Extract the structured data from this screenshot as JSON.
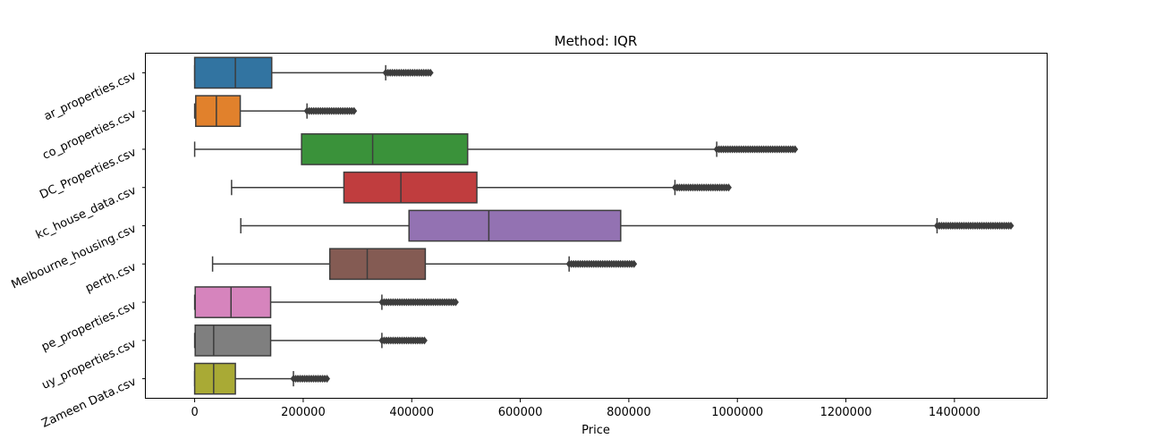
{
  "chart_data": {
    "type": "boxplot",
    "orientation": "horizontal",
    "title": "Method: IQR",
    "xlabel": "Price",
    "ylabel": "",
    "xlim": [
      -90000,
      1570000
    ],
    "xticks": [
      0,
      200000,
      400000,
      600000,
      800000,
      1000000,
      1200000,
      1400000
    ],
    "xtick_labels": [
      "0",
      "200000",
      "400000",
      "600000",
      "800000",
      "1000000",
      "1200000",
      "1400000"
    ],
    "grid": false,
    "legend": "none",
    "outlier_color": "#3d3d3d",
    "line_color": "#3d3d3d",
    "series": [
      {
        "name": "ar_properties.csv",
        "color": "#3274a1",
        "whisker_low": 0,
        "q1": 0,
        "median": 75000,
        "q3": 142000,
        "whisker_high": 352000,
        "outlier_min": 352000,
        "outlier_max": 435000
      },
      {
        "name": "co_properties.csv",
        "color": "#e1812c",
        "whisker_low": 0,
        "q1": 2000,
        "median": 40000,
        "q3": 84000,
        "whisker_high": 207000,
        "outlier_min": 207000,
        "outlier_max": 295000
      },
      {
        "name": "DC_Properties.csv",
        "color": "#3a923a",
        "whisker_low": 0,
        "q1": 197000,
        "median": 328000,
        "q3": 503000,
        "whisker_high": 962000,
        "outlier_min": 962000,
        "outlier_max": 1108000
      },
      {
        "name": "kc_house_data.csv",
        "color": "#c03d3e",
        "whisker_low": 68000,
        "q1": 275000,
        "median": 380000,
        "q3": 520000,
        "whisker_high": 885000,
        "outlier_min": 885000,
        "outlier_max": 988000
      },
      {
        "name": "Melbourne_housing.csv",
        "color": "#9372b2",
        "whisker_low": 85000,
        "q1": 395000,
        "median": 542000,
        "q3": 785000,
        "whisker_high": 1368000,
        "outlier_min": 1368000,
        "outlier_max": 1505000
      },
      {
        "name": "perth.csv",
        "color": "#845b53",
        "whisker_low": 33000,
        "q1": 249000,
        "median": 318000,
        "q3": 425000,
        "whisker_high": 690000,
        "outlier_min": 690000,
        "outlier_max": 812000
      },
      {
        "name": "pe_properties.csv",
        "color": "#d684bd",
        "whisker_low": 0,
        "q1": 1000,
        "median": 67000,
        "q3": 140000,
        "whisker_high": 345000,
        "outlier_min": 345000,
        "outlier_max": 485000
      },
      {
        "name": "uy_properties.csv",
        "color": "#7f7f7f",
        "whisker_low": 0,
        "q1": 1000,
        "median": 35000,
        "q3": 140000,
        "whisker_high": 345000,
        "outlier_min": 345000,
        "outlier_max": 427000
      },
      {
        "name": "Zameen Data.csv",
        "color": "#a9aa35",
        "whisker_low": 0,
        "q1": 0,
        "median": 35000,
        "q3": 75000,
        "whisker_high": 182000,
        "outlier_min": 182000,
        "outlier_max": 245000
      }
    ]
  }
}
